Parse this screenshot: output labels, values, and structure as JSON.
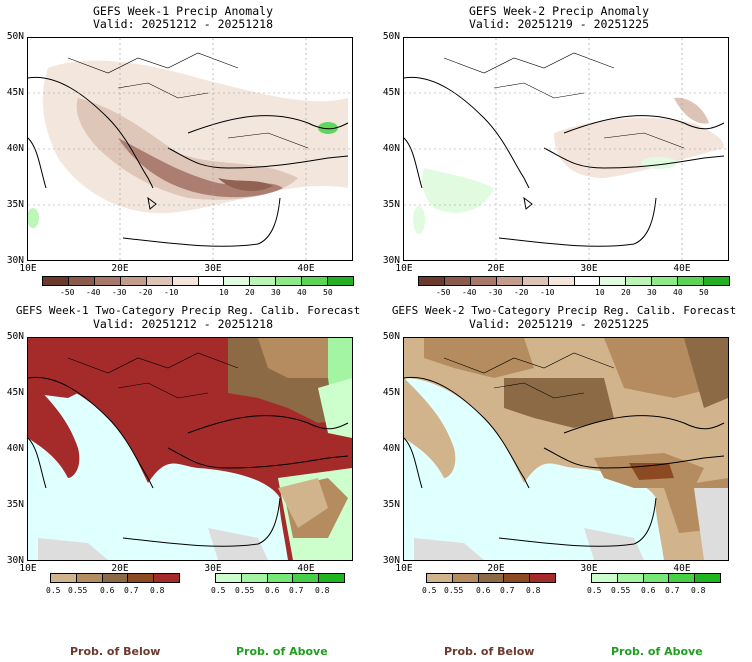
{
  "panels": [
    {
      "title": "GEFS Week-1 Precip Anomaly",
      "valid": "Valid: 20251212 - 20251218"
    },
    {
      "title": "GEFS Week-2 Precip Anomaly",
      "valid": "Valid: 20251219 - 20251225"
    },
    {
      "title": "GEFS Week-1 Two-Category Precip Reg. Calib. Forecast",
      "valid": "Valid: 20251212 - 20251218"
    },
    {
      "title": "GEFS Week-2 Two-Category Precip Reg. Calib. Forecast",
      "valid": "Valid: 20251219 - 20251225"
    }
  ],
  "lat_labels": [
    "50N",
    "45N",
    "40N",
    "35N",
    "30N"
  ],
  "lon_labels": [
    "10E",
    "20E",
    "30E",
    "40E"
  ],
  "anomaly_colorbar": {
    "ticks": [
      "-50",
      "-40",
      "-30",
      "-20",
      "-10",
      "10",
      "20",
      "30",
      "40",
      "50"
    ],
    "colors": [
      "#6b3a2c",
      "#8c5a4a",
      "#a8786a",
      "#c39c8c",
      "#ddc3b5",
      "#f3e5dc",
      "#ffffff",
      "#e1fbe1",
      "#b9f6b5",
      "#8ceb87",
      "#59d455",
      "#22b022"
    ]
  },
  "prob_colorbar": {
    "ticks": [
      "0.5",
      "0.55",
      "0.6",
      "0.7",
      "0.8"
    ],
    "below_colors": [
      "#d2b48c",
      "#b48c5f",
      "#8c6a46",
      "#8b4a22",
      "#a52a2a"
    ],
    "above_colors": [
      "#ccffcc",
      "#a3f5a3",
      "#75e875",
      "#45d045",
      "#1fb51f"
    ]
  },
  "legend": {
    "below": "Prob. of Below",
    "above": "Prob. of Above"
  },
  "colors": {
    "sea": "#e0ffff",
    "below_text": "#6b3a2c",
    "above_text": "#1ea01e"
  }
}
